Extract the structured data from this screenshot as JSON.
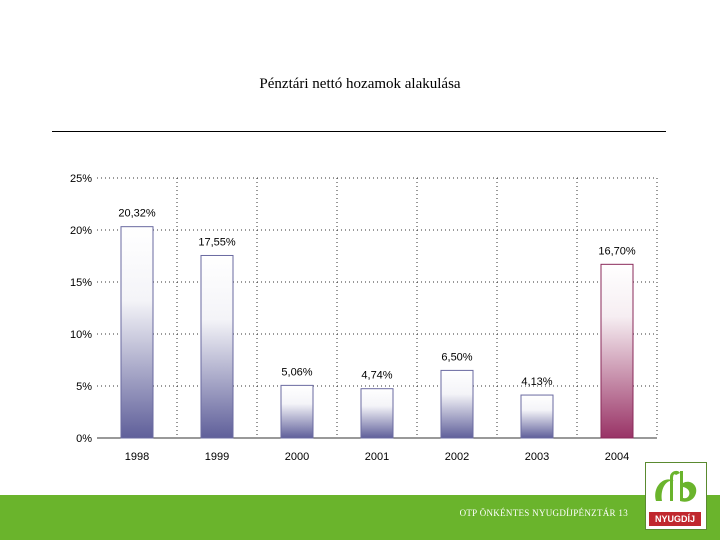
{
  "slide": {
    "title": "Pénztári nettó hozamok alakulása",
    "footer": "OTP ÖNKÉNTES NYUGDÍJPÉNZTÁR 13",
    "logo_text": "NYUGDÍJ",
    "footer_color": "#6ab42c",
    "logo_label_color": "#c0272d"
  },
  "chart_data": {
    "type": "bar",
    "title": "Pénztári nettó hozamok alakulása",
    "categories": [
      "1998",
      "1999",
      "2000",
      "2001",
      "2002",
      "2003",
      "2004"
    ],
    "values": [
      20.32,
      17.55,
      5.06,
      4.74,
      6.5,
      4.13,
      16.7
    ],
    "data_labels": [
      "20,32%",
      "17,55%",
      "5,06%",
      "4,74%",
      "6,50%",
      "4,13%",
      "16,70%"
    ],
    "ylim": [
      0,
      25
    ],
    "yticks": [
      0,
      5,
      10,
      15,
      20,
      25
    ],
    "ytick_labels": [
      "0%",
      "5%",
      "10%",
      "15%",
      "20%",
      "25%"
    ],
    "grid": true,
    "highlight_index": 6,
    "colors": {
      "bar": "#5f5f9a",
      "highlight": "#993366"
    }
  }
}
